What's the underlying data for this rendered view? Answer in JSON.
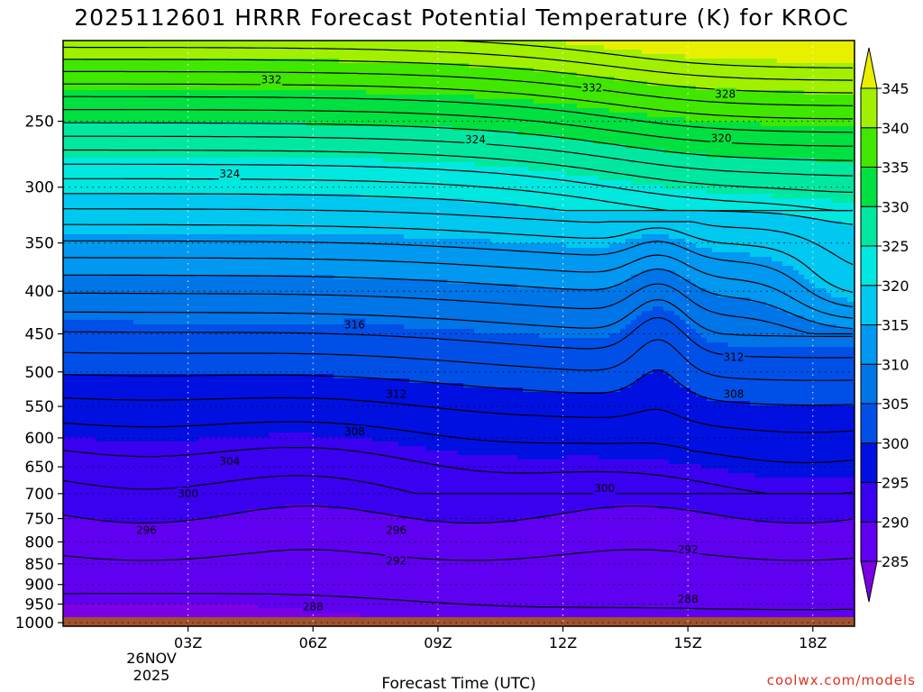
{
  "chart_data": {
    "type": "heatmap",
    "title": "2025112601 HRRR Forecast Potential Temperature (K) for KROC",
    "xlabel": "Forecast Time (UTC)",
    "ylabel": "",
    "credit": "coolwx.com/models",
    "x_range_hours": [
      0,
      19
    ],
    "y_range_hPa": [
      1010,
      200
    ],
    "x_ticks": [
      {
        "hour": 3,
        "label": "03Z"
      },
      {
        "hour": 6,
        "label": "06Z"
      },
      {
        "hour": 9,
        "label": "09Z"
      },
      {
        "hour": 12,
        "label": "12Z"
      },
      {
        "hour": 15,
        "label": "15Z"
      },
      {
        "hour": 18,
        "label": "18Z"
      }
    ],
    "x_date_label": [
      "26NOV",
      "2025"
    ],
    "y_ticks": [
      250,
      300,
      350,
      400,
      450,
      500,
      550,
      600,
      650,
      700,
      750,
      800,
      850,
      900,
      950,
      1000
    ],
    "y_scale": "log-pressure",
    "grid": "dotted",
    "colorbar": {
      "position": "right",
      "levels": [
        285,
        290,
        295,
        300,
        305,
        310,
        315,
        320,
        325,
        330,
        335,
        340,
        345
      ],
      "colors": [
        "#7a00e6",
        "#6000f0",
        "#3a00f0",
        "#0010e0",
        "#0050e8",
        "#0075e8",
        "#0098f0",
        "#00c8f0",
        "#00e8e0",
        "#00e8a0",
        "#00e040",
        "#40e800",
        "#a0f000",
        "#e8f000"
      ]
    },
    "contour_interval_K": 2,
    "contour_labels": [
      {
        "value": 332,
        "hour": 5.0,
        "p": 223
      },
      {
        "value": 332,
        "hour": 12.7,
        "p": 228
      },
      {
        "value": 328,
        "hour": 15.9,
        "p": 232
      },
      {
        "value": 324,
        "hour": 9.9,
        "p": 263
      },
      {
        "value": 320,
        "hour": 15.8,
        "p": 262
      },
      {
        "value": 324,
        "hour": 4.0,
        "p": 289
      },
      {
        "value": 316,
        "hour": 7.0,
        "p": 439
      },
      {
        "value": 312,
        "hour": 16.1,
        "p": 480
      },
      {
        "value": 312,
        "hour": 8.0,
        "p": 532
      },
      {
        "value": 308,
        "hour": 16.1,
        "p": 532
      },
      {
        "value": 308,
        "hour": 7.0,
        "p": 590
      },
      {
        "value": 304,
        "hour": 4.0,
        "p": 640
      },
      {
        "value": 300,
        "hour": 3.0,
        "p": 700
      },
      {
        "value": 300,
        "hour": 13.0,
        "p": 690
      },
      {
        "value": 296,
        "hour": 2.0,
        "p": 775
      },
      {
        "value": 296,
        "hour": 8.0,
        "p": 775
      },
      {
        "value": 292,
        "hour": 8.0,
        "p": 843
      },
      {
        "value": 292,
        "hour": 15.0,
        "p": 817
      },
      {
        "value": 288,
        "hour": 6.0,
        "p": 957
      },
      {
        "value": 288,
        "hour": 15.0,
        "p": 937
      }
    ],
    "surface_pressure_hPa": 985
  }
}
